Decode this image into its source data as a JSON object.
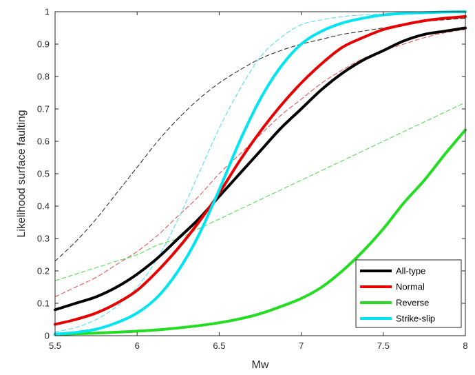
{
  "chart_data": {
    "type": "line",
    "title": "",
    "xlabel": "Mw",
    "ylabel": "Likelihood surface faulting",
    "xlim": [
      5.5,
      8
    ],
    "ylim": [
      0,
      1
    ],
    "xticks": [
      5.5,
      6,
      6.5,
      7,
      7.5,
      8
    ],
    "xtick_labels": [
      "5.5",
      "6",
      "6.5",
      "7",
      "7.5",
      "8"
    ],
    "yticks": [
      0,
      0.1,
      0.2,
      0.3,
      0.4,
      0.5,
      0.6,
      0.7,
      0.8,
      0.9,
      1
    ],
    "ytick_labels": [
      "0",
      "0.1",
      "0.2",
      "0.3",
      "0.4",
      "0.5",
      "0.6",
      "0.7",
      "0.8",
      "0.9",
      "1"
    ],
    "grid": false,
    "legend_position": "bottom-right",
    "x": [
      5.5,
      5.625,
      5.75,
      5.875,
      6.0,
      6.125,
      6.25,
      6.375,
      6.5,
      6.625,
      6.75,
      6.875,
      7.0,
      7.125,
      7.25,
      7.375,
      7.5,
      7.625,
      7.75,
      7.875,
      8.0
    ],
    "series": [
      {
        "name": "All-type",
        "style": "solid",
        "color": "#000000",
        "legend": true,
        "values": [
          0.08,
          0.1,
          0.12,
          0.15,
          0.19,
          0.24,
          0.3,
          0.36,
          0.43,
          0.5,
          0.57,
          0.64,
          0.7,
          0.76,
          0.81,
          0.85,
          0.88,
          0.91,
          0.93,
          0.94,
          0.95
        ]
      },
      {
        "name": "Normal",
        "style": "solid",
        "color": "#e60000",
        "legend": true,
        "values": [
          0.035,
          0.05,
          0.07,
          0.1,
          0.14,
          0.2,
          0.27,
          0.35,
          0.44,
          0.54,
          0.63,
          0.71,
          0.78,
          0.84,
          0.89,
          0.92,
          0.945,
          0.96,
          0.972,
          0.98,
          0.985
        ]
      },
      {
        "name": "Reverse",
        "style": "solid",
        "color": "#22dd22",
        "legend": true,
        "values": [
          0.004,
          0.006,
          0.008,
          0.011,
          0.014,
          0.018,
          0.024,
          0.031,
          0.04,
          0.052,
          0.068,
          0.09,
          0.115,
          0.15,
          0.2,
          0.26,
          0.33,
          0.41,
          0.48,
          0.56,
          0.635
        ]
      },
      {
        "name": "Strike-slip",
        "style": "solid",
        "color": "#00e5f0",
        "legend": true,
        "values": [
          0.005,
          0.01,
          0.02,
          0.04,
          0.07,
          0.12,
          0.2,
          0.31,
          0.45,
          0.6,
          0.73,
          0.83,
          0.9,
          0.94,
          0.965,
          0.98,
          0.99,
          0.995,
          0.997,
          0.999,
          1.0
        ]
      },
      {
        "name": "All-type (dashed)",
        "style": "dashed",
        "color": "#333333",
        "legend": false,
        "values": [
          0.23,
          0.29,
          0.36,
          0.44,
          0.52,
          0.6,
          0.67,
          0.73,
          0.78,
          0.82,
          0.855,
          0.88,
          0.9,
          0.915,
          0.93,
          0.94,
          0.95,
          0.96,
          0.97,
          0.975,
          0.98
        ]
      },
      {
        "name": "Normal (dashed)",
        "style": "dashed",
        "color": "#e85555",
        "legend": false,
        "values": [
          0.12,
          0.15,
          0.18,
          0.22,
          0.26,
          0.31,
          0.37,
          0.43,
          0.5,
          0.56,
          0.62,
          0.68,
          0.73,
          0.78,
          0.82,
          0.855,
          0.88,
          0.9,
          0.92,
          0.935,
          0.945
        ]
      },
      {
        "name": "Reverse (dashed)",
        "style": "dashed",
        "color": "#55dd55",
        "legend": false,
        "values": [
          0.17,
          0.19,
          0.21,
          0.23,
          0.25,
          0.28,
          0.3,
          0.33,
          0.36,
          0.39,
          0.42,
          0.45,
          0.48,
          0.51,
          0.54,
          0.57,
          0.6,
          0.63,
          0.66,
          0.69,
          0.72
        ]
      },
      {
        "name": "Strike-slip (dashed)",
        "style": "dashed",
        "color": "#55e0f0",
        "legend": false,
        "values": [
          0.012,
          0.025,
          0.05,
          0.09,
          0.15,
          0.24,
          0.36,
          0.5,
          0.64,
          0.76,
          0.86,
          0.92,
          0.96,
          0.975,
          0.985,
          0.99,
          0.993,
          0.996,
          0.998,
          0.999,
          1.0
        ]
      }
    ]
  }
}
